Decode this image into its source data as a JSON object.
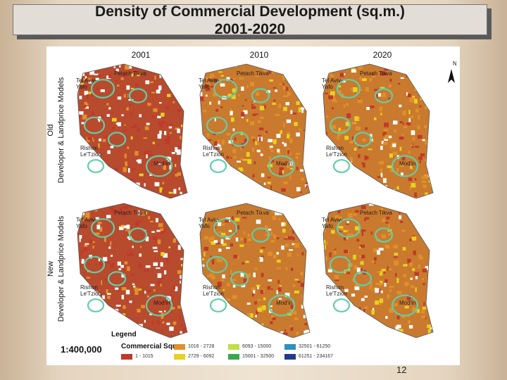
{
  "title": {
    "line1": "Density of Commercial Development (sq.m.)",
    "line2": "2001-2020"
  },
  "columns": [
    "2001",
    "2010",
    "2020"
  ],
  "rows": [
    {
      "line1": "Old",
      "line2": "Developer & Landprice Models"
    },
    {
      "line1": "New",
      "line2": "Developer & Landprice Models"
    }
  ],
  "panels": [
    {
      "row": 0,
      "col": 0,
      "density": 0.35
    },
    {
      "row": 0,
      "col": 1,
      "density": 0.65
    },
    {
      "row": 0,
      "col": 2,
      "density": 0.85
    },
    {
      "row": 1,
      "col": 0,
      "density": 0.3
    },
    {
      "row": 1,
      "col": 1,
      "density": 0.62
    },
    {
      "row": 1,
      "col": 2,
      "density": 0.88
    }
  ],
  "cities": {
    "tel_aviv_1": "Tel Aviv-",
    "tel_aviv_2": "Yafo",
    "petach_tikva": "Petach Tikva",
    "rishon_1": "Rishon",
    "rishon_2": "Le'Tzion",
    "modiin": "Mod'in"
  },
  "north_label": "N",
  "legend": {
    "title": "Legend",
    "scale": "1:400,000",
    "header": "Commercial Sqm",
    "classes": [
      {
        "label": "1 - 1015",
        "color": "#c0392b"
      },
      {
        "label": "1016 - 2728",
        "color": "#e0902a"
      },
      {
        "label": "2729 - 6092",
        "color": "#e8d020"
      },
      {
        "label": "6093 - 15000",
        "color": "#bde04a"
      },
      {
        "label": "15001 - 32500",
        "color": "#3aa84a"
      },
      {
        "label": "32501 - 61250",
        "color": "#2f8fbf"
      },
      {
        "label": "61251 - 234167",
        "color": "#1f3c8a"
      }
    ]
  },
  "district_boundary_color": "#5fcfa8",
  "page_number": "12"
}
